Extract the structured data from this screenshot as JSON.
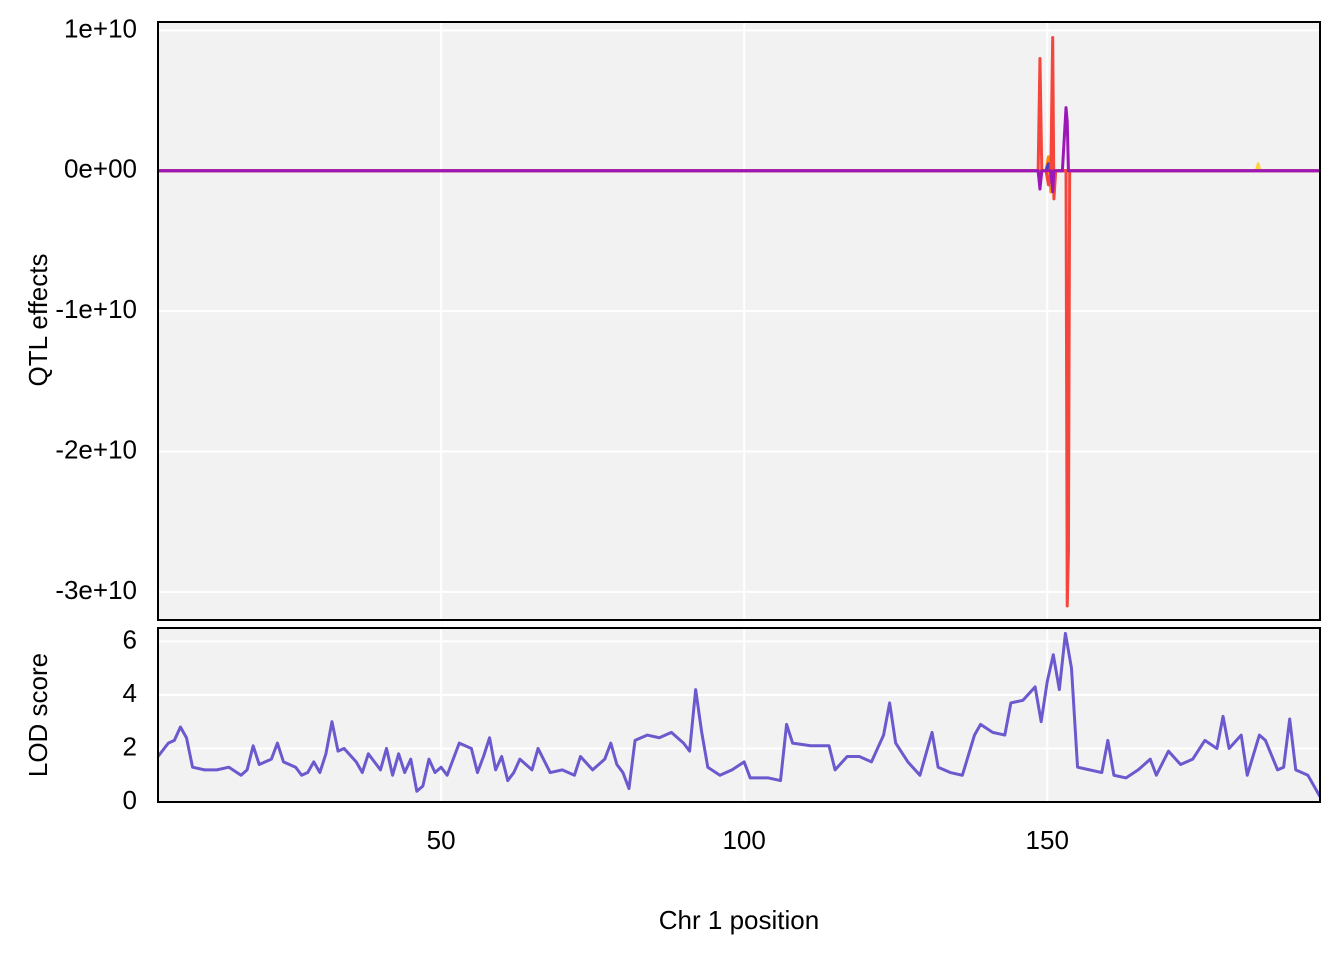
{
  "chart_data": [
    {
      "type": "line",
      "ylabel": "QTL effects",
      "x": [
        3.3,
        148.5,
        148.8,
        149.1,
        149.8,
        150.2,
        150.6,
        150.9,
        151.1,
        151.4,
        152.5,
        153.1,
        153.3,
        153.5,
        153.7,
        154,
        184.5,
        184.8,
        185.1,
        195
      ],
      "series": [
        {
          "color": "#ffd23f",
          "values": [
            0,
            0,
            0,
            0,
            0,
            0,
            0,
            0,
            0,
            0,
            0,
            0,
            0,
            0,
            0,
            0,
            0,
            500000000,
            0,
            0
          ]
        },
        {
          "color": "#ff8c00",
          "values": [
            0,
            0,
            0,
            0,
            0,
            1000000000,
            -1500000000,
            0,
            0,
            0,
            0,
            0,
            0,
            0,
            0,
            0,
            0,
            0,
            0,
            0
          ]
        },
        {
          "color": "#4b3fc0",
          "values": [
            0,
            0,
            -1000000000,
            0,
            0,
            500000000,
            0,
            0,
            0,
            0,
            0,
            0,
            0,
            0,
            0,
            0,
            0,
            0,
            0,
            0
          ]
        },
        {
          "color": "#f4463c",
          "values": [
            0,
            0,
            8000000000,
            0,
            0,
            -1000000000,
            0,
            9500000000,
            -2000000000,
            0,
            0,
            0,
            -31000000000,
            -27000000000,
            0,
            0,
            0,
            0,
            0,
            0
          ]
        },
        {
          "color": "#9d17b8",
          "values": [
            0,
            0,
            -1300000000,
            0,
            0,
            0,
            0,
            -1500000000,
            0,
            0,
            0,
            4500000000,
            3500000000,
            0,
            0,
            0,
            0,
            0,
            0,
            0
          ]
        }
      ],
      "xlim": [
        3.3,
        195
      ],
      "xticks": [
        50,
        100,
        150
      ],
      "ylim": [
        -32000000000,
        10600000000
      ],
      "yticks": [
        {
          "value": 10000000000,
          "label": "1e+10"
        },
        {
          "value": 0,
          "label": "0e+00"
        },
        {
          "value": -10000000000,
          "label": "-1e+10"
        },
        {
          "value": -20000000000,
          "label": "-2e+10"
        },
        {
          "value": -30000000000,
          "label": "-3e+10"
        }
      ],
      "grid": true
    },
    {
      "type": "line",
      "ylabel": "LOD score",
      "xlabel": "Chr 1 position",
      "x": [
        3.3,
        5,
        6,
        7,
        8,
        9,
        11,
        13,
        15,
        17,
        18,
        19,
        20,
        22,
        23,
        24,
        26,
        27,
        28,
        29,
        30,
        31,
        32,
        33,
        34,
        36,
        37,
        38,
        40,
        41,
        42,
        43,
        44,
        45,
        46,
        47,
        48,
        49,
        50,
        51,
        52,
        53,
        55,
        56,
        57,
        58,
        59,
        60,
        61,
        62,
        63,
        65,
        66,
        68,
        70,
        72,
        73,
        75,
        77,
        78,
        79,
        80,
        81,
        82,
        84,
        86,
        88,
        90,
        91,
        92,
        93,
        94,
        96,
        98,
        100,
        101,
        104,
        106,
        107,
        108,
        111,
        114,
        115,
        117,
        119,
        121,
        123,
        124,
        125,
        127,
        129,
        131,
        132,
        134,
        136,
        138,
        139,
        141,
        143,
        144,
        146,
        148,
        149,
        150,
        151,
        152,
        153,
        154,
        155,
        157,
        159,
        160,
        161,
        163,
        165,
        167,
        168,
        170,
        172,
        174,
        176,
        178,
        179,
        180,
        182,
        183,
        185,
        186,
        188,
        189,
        190,
        191,
        193,
        194,
        195
      ],
      "series": [
        {
          "color": "#6a5acd",
          "values": [
            1.7,
            2.2,
            2.3,
            2.8,
            2.4,
            1.3,
            1.2,
            1.2,
            1.3,
            1.0,
            1.2,
            2.1,
            1.4,
            1.6,
            2.2,
            1.5,
            1.3,
            1.0,
            1.1,
            1.5,
            1.1,
            1.8,
            3.0,
            1.9,
            2.0,
            1.5,
            1.1,
            1.8,
            1.2,
            2.0,
            1.0,
            1.8,
            1.1,
            1.6,
            0.4,
            0.6,
            1.6,
            1.1,
            1.3,
            1.0,
            1.6,
            2.2,
            2.0,
            1.1,
            1.7,
            2.4,
            1.2,
            1.7,
            0.8,
            1.1,
            1.6,
            1.2,
            2.0,
            1.1,
            1.2,
            1.0,
            1.7,
            1.2,
            1.6,
            2.2,
            1.4,
            1.1,
            0.5,
            2.3,
            2.5,
            2.4,
            2.6,
            2.2,
            1.9,
            4.2,
            2.6,
            1.3,
            1.0,
            1.2,
            1.5,
            0.9,
            0.9,
            0.8,
            2.9,
            2.2,
            2.1,
            2.1,
            1.2,
            1.7,
            1.7,
            1.5,
            2.5,
            3.7,
            2.2,
            1.5,
            1.0,
            2.6,
            1.3,
            1.1,
            1.0,
            2.5,
            2.9,
            2.6,
            2.5,
            3.7,
            3.8,
            4.3,
            3.0,
            4.5,
            5.5,
            4.2,
            6.3,
            5.0,
            1.3,
            1.2,
            1.1,
            2.3,
            1.0,
            0.9,
            1.2,
            1.6,
            1.0,
            1.9,
            1.4,
            1.6,
            2.3,
            2.0,
            3.2,
            2.0,
            2.5,
            1.0,
            2.5,
            2.3,
            1.2,
            1.3,
            3.1,
            1.2,
            1.0,
            0.6,
            0.2
          ]
        }
      ],
      "xlim": [
        3.3,
        195
      ],
      "xticks": [
        50,
        100,
        150
      ],
      "ylim": [
        0,
        6.5
      ],
      "yticks": [
        0,
        2,
        4,
        6
      ],
      "grid": true
    }
  ]
}
